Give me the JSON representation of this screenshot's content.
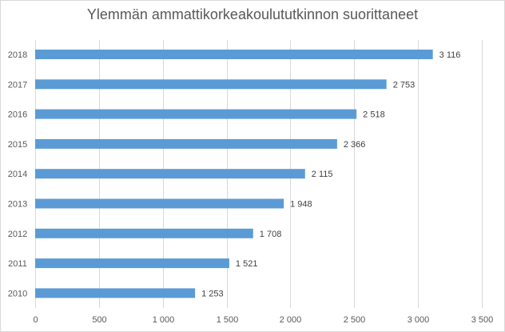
{
  "chart_data": {
    "type": "bar",
    "orientation": "horizontal",
    "title": "Ylemmän ammattikorkeakoulututkinnon suorittaneet",
    "categories": [
      "2018",
      "2017",
      "2016",
      "2015",
      "2014",
      "2013",
      "2012",
      "2011",
      "2010"
    ],
    "values": [
      3116,
      2753,
      2518,
      2366,
      2115,
      1948,
      1708,
      1521,
      1253
    ],
    "data_labels": [
      "3 116",
      "2 753",
      "2 518",
      "2 366",
      "2 115",
      "1 948",
      "1 708",
      "1 521",
      "1 253"
    ],
    "x_ticks": [
      0,
      500,
      1000,
      1500,
      2000,
      2500,
      3000,
      3500
    ],
    "x_tick_labels": [
      "0",
      "500",
      "1 000",
      "1 500",
      "2 000",
      "2 500",
      "3 000",
      "3 500"
    ],
    "xlim": [
      0,
      3500
    ],
    "grid": true,
    "legend": "none",
    "bar_color": "#5b9bd5",
    "grid_color": "#d9d9d9"
  }
}
